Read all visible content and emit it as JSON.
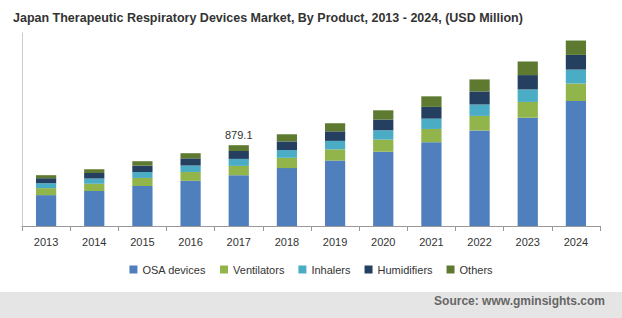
{
  "chart_data": {
    "type": "bar",
    "title": "Japan Therapeutic Respiratory Devices Market, By Product, 2013 - 2024, (USD Million)",
    "source": "Source: www.gminsights.com",
    "categories": [
      "2013",
      "2014",
      "2015",
      "2016",
      "2017",
      "2018",
      "2019",
      "2020",
      "2021",
      "2022",
      "2023",
      "2024"
    ],
    "series": [
      {
        "name": "OSA devices",
        "color": "#4f7fbd",
        "values": [
          336,
          380,
          435,
          492,
          552,
          630,
          712,
          808,
          912,
          1040,
          1178,
          1360
        ]
      },
      {
        "name": "Ventilators",
        "color": "#91b54a",
        "values": [
          76,
          80,
          88,
          96,
          102,
          112,
          122,
          132,
          144,
          158,
          172,
          190
        ]
      },
      {
        "name": "Inhalers",
        "color": "#4bacc6",
        "values": [
          54,
          58,
          64,
          70,
          76,
          84,
          92,
          102,
          112,
          124,
          136,
          152
        ]
      },
      {
        "name": "Humidifiers",
        "color": "#243f60",
        "values": [
          54,
          60,
          70,
          78,
          86,
          94,
          104,
          116,
          128,
          142,
          156,
          160
        ]
      },
      {
        "name": "Others",
        "color": "#5e7a30",
        "values": [
          33,
          40,
          48,
          56,
          63.1,
          78,
          88,
          101,
          115,
          131,
          148,
          156
        ]
      }
    ],
    "annotations": [
      {
        "category": "2017",
        "value": 879.1
      }
    ],
    "ylim": [
      0,
      2100
    ],
    "stacked": true,
    "grid": false,
    "legend": "bottom",
    "tick_labels": "x"
  }
}
